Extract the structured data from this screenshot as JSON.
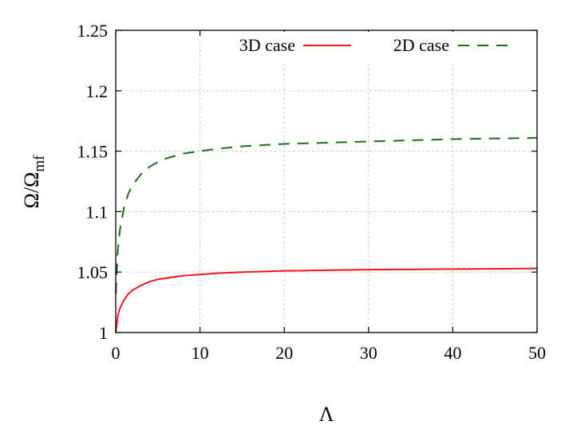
{
  "chart_data": {
    "type": "line",
    "xlabel": "Λ",
    "ylabel": {
      "base": "Ω/Ω",
      "sub": "mf"
    },
    "xlim": [
      0,
      50
    ],
    "ylim": [
      1,
      1.25
    ],
    "xticks": [
      "0",
      "10",
      "20",
      "30",
      "40",
      "50"
    ],
    "yticks": [
      "1",
      "1.05",
      "1.1",
      "1.15",
      "1.2",
      "1.25"
    ],
    "grid": true,
    "legend_position": "top-right",
    "series": [
      {
        "name": "3D case",
        "color": "#e8191f",
        "style": "solid",
        "x": [
          0,
          0.25,
          0.5,
          1,
          1.5,
          2,
          3,
          4,
          5,
          6,
          8,
          10,
          12,
          15,
          20,
          25,
          30,
          35,
          40,
          45,
          50
        ],
        "y": [
          1.0,
          1.014,
          1.02,
          1.027,
          1.032,
          1.035,
          1.039,
          1.042,
          1.044,
          1.045,
          1.047,
          1.048,
          1.049,
          1.05,
          1.051,
          1.0515,
          1.052,
          1.0522,
          1.0525,
          1.0527,
          1.053
        ]
      },
      {
        "name": "2D case",
        "color": "#1e6b1e",
        "style": "dashed",
        "x": [
          0,
          0.25,
          0.5,
          1,
          1.5,
          2,
          3,
          4,
          5,
          6,
          8,
          10,
          12,
          15,
          20,
          25,
          30,
          35,
          40,
          45,
          50
        ],
        "y": [
          1.032,
          1.068,
          1.085,
          1.104,
          1.115,
          1.122,
          1.131,
          1.137,
          1.141,
          1.144,
          1.148,
          1.15,
          1.152,
          1.154,
          1.156,
          1.157,
          1.158,
          1.159,
          1.16,
          1.1605,
          1.161
        ]
      }
    ]
  }
}
